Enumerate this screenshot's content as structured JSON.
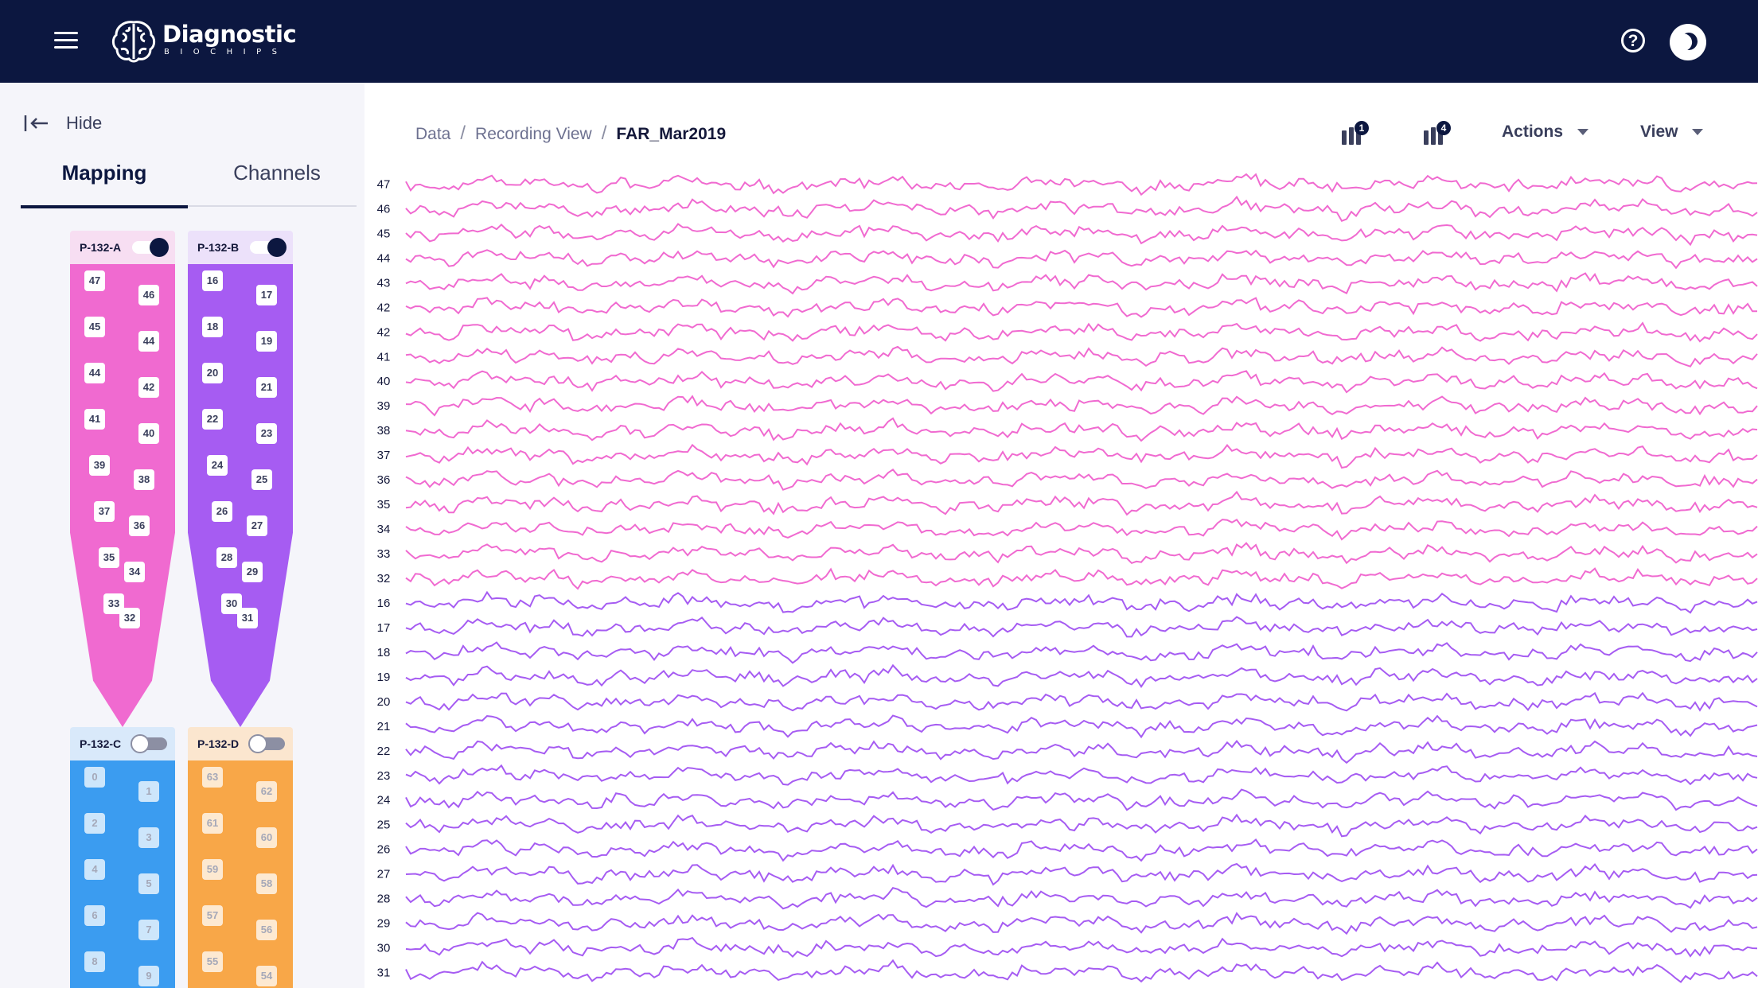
{
  "app": {
    "brand": "Diagnostic",
    "brand_sub": "BIOCHIPS",
    "menu_icon": "hamburger-menu-icon",
    "help_icon": "question-circle-icon",
    "theme_icon": "moon-icon"
  },
  "sidebar": {
    "hide_label": "Hide",
    "tabs": [
      {
        "label": "Mapping",
        "active": true
      },
      {
        "label": "Channels",
        "active": false
      }
    ],
    "probes": [
      {
        "id": "A",
        "name": "P-132-A",
        "enabled": true,
        "color": "#f06ad0",
        "head_color": "#f7def2",
        "left_channels": [
          "47",
          "45",
          "44",
          "41",
          "39",
          "37",
          "35",
          "33"
        ],
        "right_channels": [
          "46",
          "44",
          "42",
          "40",
          "38",
          "36",
          "34",
          "32"
        ]
      },
      {
        "id": "B",
        "name": "P-132-B",
        "enabled": true,
        "color": "#a65cf2",
        "head_color": "#ece1fa",
        "left_channels": [
          "16",
          "18",
          "20",
          "22",
          "24",
          "26",
          "28",
          "30"
        ],
        "right_channels": [
          "17",
          "19",
          "21",
          "23",
          "25",
          "27",
          "29",
          "31"
        ]
      },
      {
        "id": "C",
        "name": "P-132-C",
        "enabled": false,
        "color": "#3b9cf0",
        "head_color": "#d9e9fa",
        "left_channels": [
          "0",
          "2",
          "4",
          "6",
          "8"
        ],
        "right_channels": [
          "1",
          "3",
          "5",
          "7",
          "9"
        ]
      },
      {
        "id": "D",
        "name": "P-132-D",
        "enabled": false,
        "color": "#f8a748",
        "head_color": "#fbe6cf",
        "left_channels": [
          "63",
          "61",
          "59",
          "57",
          "55"
        ],
        "right_channels": [
          "62",
          "60",
          "58",
          "56",
          "54"
        ]
      }
    ]
  },
  "breadcrumb": {
    "items": [
      "Data",
      "Recording View"
    ],
    "current": "FAR_Mar2019"
  },
  "toolbar": {
    "tool1_badge": "1",
    "tool2_badge": "4",
    "actions_label": "Actions",
    "view_label": "View"
  },
  "traces": {
    "channels": [
      "47",
      "46",
      "45",
      "44",
      "43",
      "42",
      "42",
      "41",
      "40",
      "39",
      "38",
      "37",
      "36",
      "35",
      "34",
      "33",
      "32",
      "16",
      "17",
      "18",
      "19",
      "20",
      "21",
      "22",
      "23",
      "24",
      "25",
      "26",
      "27",
      "28",
      "29",
      "30",
      "31"
    ],
    "pink_count": 17,
    "pink_color": "#f06ad0",
    "purple_color": "#a65cf2"
  }
}
